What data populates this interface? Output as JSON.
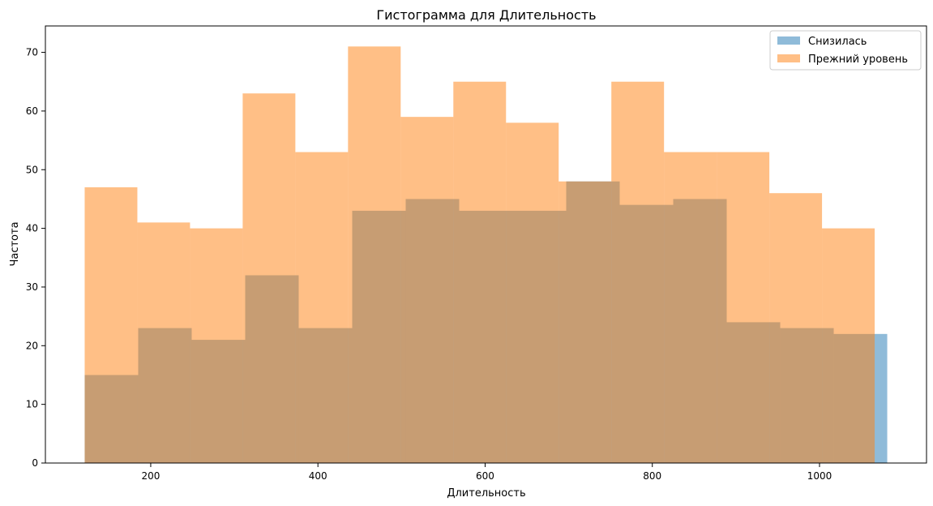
{
  "chart_data": {
    "type": "bar",
    "title": "Гистограмма для Длительность",
    "xlabel": "Длительность",
    "ylabel": "Частота",
    "xlim": [
      74,
      1128
    ],
    "ylim": [
      0,
      74.5
    ],
    "xticks": [
      200,
      400,
      600,
      800,
      1000
    ],
    "yticks": [
      0,
      10,
      20,
      30,
      40,
      50,
      60,
      70
    ],
    "grid": false,
    "legend_position": "top-right",
    "series": [
      {
        "name": "Снизилась",
        "color": "#1f77b4",
        "opacity": 0.5,
        "bin_edges": [
          121,
          185,
          249,
          313,
          377,
          441,
          505,
          569,
          633,
          697,
          761,
          825,
          889,
          953,
          1017,
          1081
        ],
        "values": [
          15,
          23,
          21,
          32,
          23,
          43,
          45,
          43,
          43,
          48,
          44,
          45,
          24,
          23,
          22
        ]
      },
      {
        "name": "Прежний уровень",
        "color": "#ff7f0e",
        "opacity": 0.5,
        "bin_edges": [
          121,
          184,
          247,
          310,
          373,
          436,
          499,
          562,
          625,
          688,
          751,
          814,
          877,
          940,
          1003,
          1066
        ],
        "values": [
          47,
          41,
          40,
          63,
          53,
          71,
          59,
          65,
          58,
          48,
          65,
          53,
          53,
          46,
          40
        ]
      }
    ]
  }
}
